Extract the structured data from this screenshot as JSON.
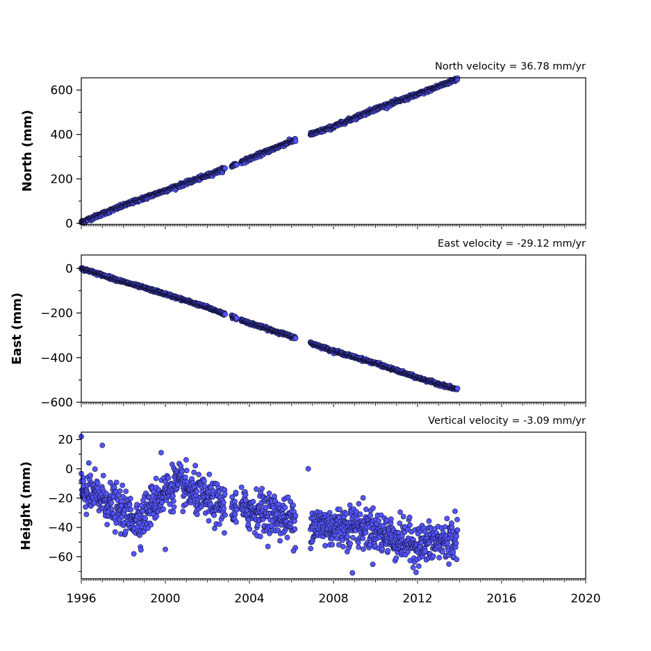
{
  "chart_data": [
    {
      "type": "scatter",
      "title": "North velocity = 36.78 mm/yr",
      "ylabel": "North (mm)",
      "xlim": [
        1996,
        2020
      ],
      "ylim": [
        -5,
        655
      ],
      "yticks": [
        0,
        200,
        400,
        600
      ],
      "ytick_labels": [
        "0",
        "200",
        "400",
        "600"
      ],
      "velocity_mm_per_yr": 36.78,
      "x_start": 1996.0,
      "x_end": 2013.9,
      "y_start": 5,
      "scatter_mm": 4,
      "gaps": [
        [
          2002.85,
          2003.15
        ],
        [
          2003.4,
          2003.6
        ],
        [
          2006.2,
          2006.9
        ]
      ],
      "segments": [
        {
          "x": [
            1996.0,
            2013.9
          ],
          "y": [
            5,
            650
          ],
          "note": "approx. linear trend"
        }
      ],
      "points": [
        {
          "x": 1996.0,
          "y": 5
        },
        {
          "x": 1998.0,
          "y": 80
        },
        {
          "x": 2000.0,
          "y": 148
        },
        {
          "x": 2002.0,
          "y": 215
        },
        {
          "x": 2004.0,
          "y": 290
        },
        {
          "x": 2006.0,
          "y": 370
        },
        {
          "x": 2008.0,
          "y": 435
        },
        {
          "x": 2010.0,
          "y": 515
        },
        {
          "x": 2012.0,
          "y": 580
        },
        {
          "x": 2013.9,
          "y": 650
        }
      ]
    },
    {
      "type": "scatter",
      "title": "East velocity = -29.12 mm/yr",
      "ylabel": "East (mm)",
      "xlim": [
        1996,
        2020
      ],
      "ylim": [
        -600,
        60
      ],
      "yticks": [
        0,
        -200,
        -400,
        -600
      ],
      "ytick_labels": [
        "0",
        "−200",
        "−400",
        "−600"
      ],
      "velocity_mm_per_yr": -29.12,
      "x_start": 1996.0,
      "x_end": 2013.9,
      "y_start": 0,
      "scatter_mm": 3,
      "gaps": [
        [
          2002.85,
          2003.15
        ],
        [
          2003.4,
          2003.6
        ],
        [
          2006.2,
          2006.9
        ]
      ],
      "points": [
        {
          "x": 1996.0,
          "y": 0
        },
        {
          "x": 1998.0,
          "y": -60
        },
        {
          "x": 2000.0,
          "y": -115
        },
        {
          "x": 2002.0,
          "y": -175
        },
        {
          "x": 2004.0,
          "y": -245
        },
        {
          "x": 2006.0,
          "y": -305
        },
        {
          "x": 2008.0,
          "y": -370
        },
        {
          "x": 2010.0,
          "y": -425
        },
        {
          "x": 2012.0,
          "y": -490
        },
        {
          "x": 2013.9,
          "y": -543
        }
      ]
    },
    {
      "type": "scatter",
      "title": "Vertical velocity = -3.09 mm/yr",
      "ylabel": "Height (mm)",
      "xlim": [
        1996,
        2020
      ],
      "ylim": [
        -75,
        25
      ],
      "yticks": [
        20,
        0,
        -20,
        -40,
        -60
      ],
      "ytick_labels": [
        "20",
        "0",
        "−20",
        "−40",
        "−60"
      ],
      "xticks": [
        1996,
        2000,
        2004,
        2008,
        2012,
        2016,
        2020
      ],
      "xtick_labels": [
        "1996",
        "2000",
        "2004",
        "2008",
        "2012",
        "2016",
        "2020"
      ],
      "velocity_mm_per_yr": -3.09,
      "x_start": 1996.0,
      "x_end": 2013.9,
      "gaps": [
        [
          2002.85,
          2003.15
        ],
        [
          2003.4,
          2003.6
        ],
        [
          2006.2,
          2006.9
        ]
      ],
      "trend_points": [
        {
          "x": 1996.0,
          "y": -15
        },
        {
          "x": 1997.0,
          "y": -20
        },
        {
          "x": 1998.0,
          "y": -30
        },
        {
          "x": 1998.8,
          "y": -35
        },
        {
          "x": 1999.5,
          "y": -22
        },
        {
          "x": 2000.5,
          "y": -10
        },
        {
          "x": 2001.5,
          "y": -18
        },
        {
          "x": 2002.5,
          "y": -25
        },
        {
          "x": 2004.0,
          "y": -28
        },
        {
          "x": 2005.0,
          "y": -30
        },
        {
          "x": 2006.0,
          "y": -35
        },
        {
          "x": 2007.0,
          "y": -38
        },
        {
          "x": 2008.0,
          "y": -40
        },
        {
          "x": 2009.0,
          "y": -38
        },
        {
          "x": 2010.0,
          "y": -42
        },
        {
          "x": 2011.0,
          "y": -48
        },
        {
          "x": 2012.0,
          "y": -52
        },
        {
          "x": 2013.0,
          "y": -50
        },
        {
          "x": 2013.9,
          "y": -47
        }
      ],
      "scatter_mm": 7,
      "outliers": [
        {
          "x": 1996.0,
          "y": 22
        },
        {
          "x": 1997.0,
          "y": 16
        },
        {
          "x": 1999.8,
          "y": 11
        },
        {
          "x": 2006.8,
          "y": 0
        },
        {
          "x": 2008.9,
          "y": -71
        },
        {
          "x": 2000.0,
          "y": -55
        },
        {
          "x": 1998.5,
          "y": -58
        },
        {
          "x": 2006.1,
          "y": -56
        }
      ]
    }
  ],
  "style": {
    "marker_fill": "#5555ff",
    "marker_edge": "#111133"
  }
}
